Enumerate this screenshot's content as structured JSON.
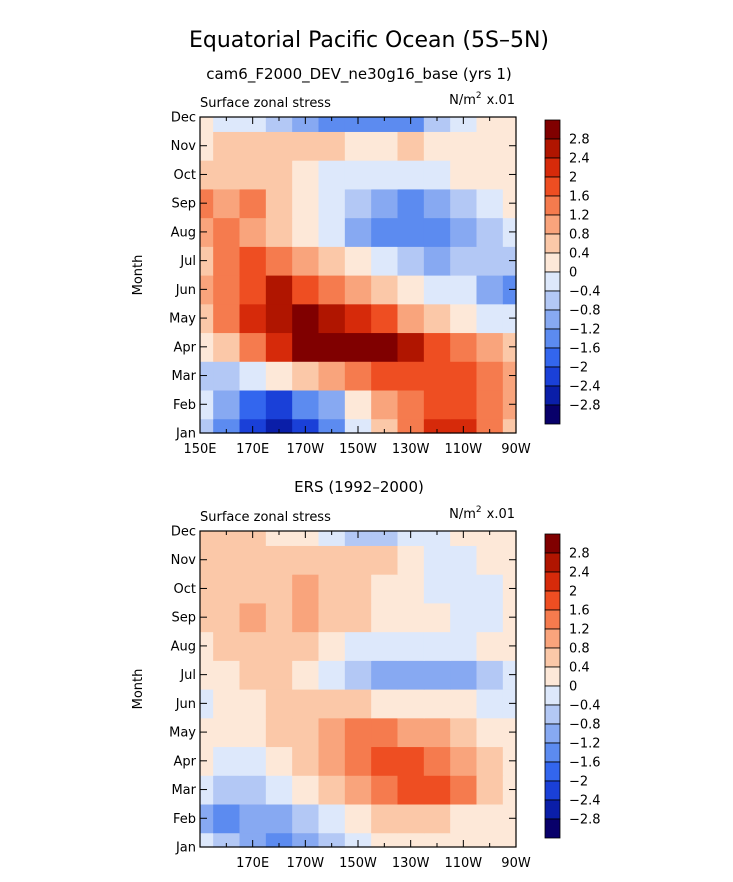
{
  "figure": {
    "title": "Equatorial Pacific Ocean (5S–5N)",
    "colors": {
      "levels": [
        "#08006a",
        "#0a1ea8",
        "#1a40d8",
        "#3366ee",
        "#5c8bf0",
        "#87a9f2",
        "#b3c8f5",
        "#dde8fb",
        "#fde8d8",
        "#fbc8a8",
        "#f9a47c",
        "#f57b4e",
        "#ee4e22",
        "#d62a0a",
        "#b01500",
        "#800000"
      ],
      "level_bounds": [
        -2.8,
        -2.4,
        -2.0,
        -1.6,
        -1.2,
        -0.8,
        -0.4,
        0.0,
        0.4,
        0.8,
        1.2,
        1.6,
        2.0,
        2.4,
        2.8
      ]
    }
  },
  "chart_data": [
    {
      "type": "heatmap",
      "panel_title": "cam6_F2000_DEV_ne30g16_base (yrs 1)",
      "left_label": "Surface zonal stress",
      "right_label": "N/m² x.01",
      "units_main": "N/m",
      "units_exp": "2",
      "units_scale": "x.01",
      "ylabel": "Month",
      "x_tick_labels": [
        "150E",
        "170E",
        "170W",
        "150W",
        "130W",
        "110W",
        "90W"
      ],
      "y_tick_labels": [
        "Jan",
        "Feb",
        "Mar",
        "Apr",
        "May",
        "Jun",
        "Jul",
        "Aug",
        "Sep",
        "Oct",
        "Nov",
        "Dec"
      ],
      "colorbar_labels": [
        "2.8",
        "2.4",
        "2",
        "1.6",
        "1.2",
        "0.8",
        "0.4",
        "0",
        "−0.4",
        "−0.8",
        "−1.2",
        "−1.6",
        "−2",
        "−2.4",
        "−2.8"
      ],
      "x": [
        150,
        160,
        170,
        180,
        190,
        200,
        210,
        220,
        230,
        240,
        250,
        260,
        270
      ],
      "y": [
        "Jan",
        "Feb",
        "Mar",
        "Apr",
        "May",
        "Jun",
        "Jul",
        "Aug",
        "Sep",
        "Oct",
        "Nov",
        "Dec"
      ],
      "values": [
        [
          -0.6,
          -1.6,
          -2.4,
          -2.8,
          -2.4,
          -1.6,
          -0.4,
          0.4,
          1.2,
          2.0,
          2.0,
          1.2,
          0.6
        ],
        [
          -0.4,
          -1.2,
          -2.0,
          -2.4,
          -1.6,
          -1.0,
          0.0,
          0.8,
          1.2,
          1.6,
          1.6,
          1.2,
          0.8
        ],
        [
          -0.8,
          -0.6,
          -0.4,
          0.0,
          0.4,
          0.8,
          1.2,
          1.6,
          1.6,
          1.6,
          1.6,
          1.2,
          0.8
        ],
        [
          0.0,
          0.4,
          1.2,
          2.0,
          2.8,
          3.0,
          3.0,
          2.8,
          2.4,
          1.6,
          1.2,
          0.8,
          0.4
        ],
        [
          0.4,
          1.2,
          2.0,
          2.4,
          2.8,
          2.4,
          2.0,
          1.6,
          1.0,
          0.4,
          0.0,
          -0.4,
          -0.4
        ],
        [
          0.8,
          1.2,
          1.6,
          2.4,
          1.6,
          1.2,
          0.8,
          0.4,
          0.0,
          -0.4,
          -0.4,
          -1.2,
          -1.6
        ],
        [
          0.4,
          1.2,
          1.6,
          1.2,
          0.8,
          0.4,
          0.0,
          -0.4,
          -0.8,
          -1.2,
          -0.8,
          -0.8,
          -0.8
        ],
        [
          0.8,
          1.2,
          0.8,
          0.4,
          0.0,
          -0.4,
          -1.2,
          -1.6,
          -1.6,
          -1.6,
          -1.2,
          -0.8,
          -0.4
        ],
        [
          1.2,
          0.8,
          1.2,
          0.4,
          0.0,
          -0.4,
          -0.8,
          -1.2,
          -1.6,
          -1.2,
          -0.8,
          -0.4,
          0.0
        ],
        [
          0.4,
          0.4,
          0.4,
          0.4,
          0.0,
          -0.4,
          -0.4,
          -0.4,
          -0.4,
          -0.4,
          0.0,
          0.0,
          0.0
        ],
        [
          0.0,
          0.4,
          0.4,
          0.4,
          0.4,
          0.4,
          0.0,
          0.0,
          0.4,
          0.0,
          0.0,
          0.0,
          0.0
        ],
        [
          0.0,
          -0.4,
          -0.4,
          -0.8,
          -1.2,
          -1.6,
          -1.6,
          -1.6,
          -1.6,
          -0.8,
          -0.4,
          0.0,
          0.0
        ]
      ],
      "zlim": [
        -2.8,
        2.8
      ]
    },
    {
      "type": "heatmap",
      "panel_title": "ERS (1992–2000)",
      "left_label": "Surface zonal stress",
      "right_label": "N/m² x.01",
      "units_main": "N/m",
      "units_exp": "2",
      "units_scale": "x.01",
      "ylabel": "Month",
      "x_tick_labels": [
        "170E",
        "170W",
        "150W",
        "130W",
        "110W",
        "90W"
      ],
      "y_tick_labels": [
        "Jan",
        "Feb",
        "Mar",
        "Apr",
        "May",
        "Jun",
        "Jul",
        "Aug",
        "Sep",
        "Oct",
        "Nov",
        "Dec"
      ],
      "colorbar_labels": [
        "2.8",
        "2.4",
        "2",
        "1.6",
        "1.2",
        "0.8",
        "0.4",
        "0",
        "−0.4",
        "−0.8",
        "−1.2",
        "−1.6",
        "−2",
        "−2.4",
        "−2.8"
      ],
      "x": [
        150,
        160,
        170,
        180,
        190,
        200,
        210,
        220,
        230,
        240,
        250,
        260,
        270
      ],
      "y": [
        "Jan",
        "Feb",
        "Mar",
        "Apr",
        "May",
        "Jun",
        "Jul",
        "Aug",
        "Sep",
        "Oct",
        "Nov",
        "Dec"
      ],
      "values": [
        [
          -0.4,
          -0.8,
          -1.2,
          -1.6,
          -1.2,
          -0.8,
          -0.4,
          0.0,
          0.0,
          0.0,
          0.0,
          0.0,
          0.0
        ],
        [
          -1.2,
          -1.6,
          -1.2,
          -1.2,
          -0.8,
          -0.4,
          0.0,
          0.4,
          0.4,
          0.4,
          0.0,
          0.0,
          0.0
        ],
        [
          -0.4,
          -0.8,
          -0.8,
          -0.4,
          0.0,
          0.4,
          0.8,
          1.2,
          1.6,
          1.8,
          1.2,
          0.4,
          0.0
        ],
        [
          0.0,
          -0.4,
          -0.4,
          0.0,
          0.4,
          0.8,
          1.2,
          1.6,
          1.6,
          1.2,
          0.8,
          0.4,
          0.0
        ],
        [
          0.0,
          0.0,
          0.0,
          0.4,
          0.4,
          0.8,
          1.2,
          1.2,
          0.8,
          0.8,
          0.4,
          0.0,
          0.0
        ],
        [
          -0.4,
          0.0,
          0.0,
          0.4,
          0.4,
          0.4,
          0.4,
          0.0,
          0.0,
          0.0,
          0.0,
          -0.4,
          -0.4
        ],
        [
          0.0,
          0.0,
          0.4,
          0.4,
          0.0,
          -0.4,
          -0.8,
          -1.2,
          -1.2,
          -1.2,
          -1.0,
          -0.8,
          -0.4
        ],
        [
          0.0,
          0.4,
          0.4,
          0.4,
          0.4,
          0.0,
          -0.4,
          -0.4,
          -0.4,
          -0.4,
          -0.4,
          0.0,
          0.0
        ],
        [
          0.4,
          0.4,
          0.8,
          0.4,
          0.8,
          0.4,
          0.4,
          0.0,
          0.0,
          0.0,
          -0.4,
          -0.4,
          0.0
        ],
        [
          0.4,
          0.4,
          0.4,
          0.4,
          0.8,
          0.4,
          0.4,
          0.0,
          0.0,
          -0.4,
          -0.4,
          -0.4,
          0.0
        ],
        [
          0.4,
          0.4,
          0.4,
          0.4,
          0.4,
          0.4,
          0.4,
          0.4,
          0.0,
          -0.4,
          -0.4,
          0.0,
          0.0
        ],
        [
          0.4,
          0.4,
          0.4,
          0.0,
          0.0,
          -0.4,
          -0.8,
          -0.8,
          -0.4,
          -0.4,
          0.0,
          0.0,
          0.0
        ]
      ],
      "zlim": [
        -2.8,
        2.8
      ]
    }
  ]
}
